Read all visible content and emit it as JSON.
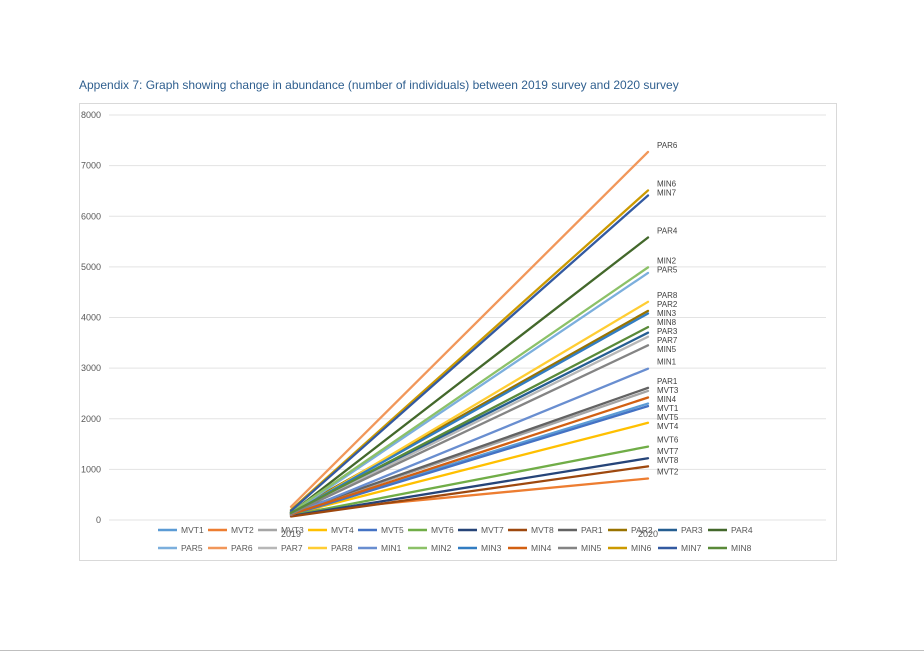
{
  "heading": "Appendix 7: Graph showing change in abundance (number of individuals) between 2019 survey and 2020 survey",
  "chart_data": {
    "type": "line",
    "x": [
      "2019",
      "2020"
    ],
    "ylim": [
      0,
      8000
    ],
    "yticks": [
      0,
      1000,
      2000,
      3000,
      4000,
      5000,
      6000,
      7000,
      8000
    ],
    "grid": true,
    "legend_position": "bottom",
    "series": [
      {
        "name": "MVT1",
        "color": "#5b9bd5",
        "values": [
          120,
          2300
        ]
      },
      {
        "name": "MVT2",
        "color": "#ed7d31",
        "values": [
          150,
          820
        ]
      },
      {
        "name": "MVT3",
        "color": "#a5a5a5",
        "values": [
          130,
          2550
        ]
      },
      {
        "name": "MVT4",
        "color": "#ffc000",
        "values": [
          110,
          1920
        ]
      },
      {
        "name": "MVT5",
        "color": "#4472c4",
        "values": [
          100,
          2250
        ]
      },
      {
        "name": "MVT6",
        "color": "#70ad47",
        "values": [
          90,
          1450
        ]
      },
      {
        "name": "MVT7",
        "color": "#264478",
        "values": [
          80,
          1220
        ]
      },
      {
        "name": "MVT8",
        "color": "#9e480e",
        "values": [
          70,
          1060
        ]
      },
      {
        "name": "PAR1",
        "color": "#636363",
        "values": [
          140,
          2610
        ]
      },
      {
        "name": "PAR2",
        "color": "#997300",
        "values": [
          160,
          4130
        ]
      },
      {
        "name": "PAR3",
        "color": "#255e91",
        "values": [
          150,
          3700
        ]
      },
      {
        "name": "PAR4",
        "color": "#43682b",
        "values": [
          140,
          5580
        ]
      },
      {
        "name": "PAR5",
        "color": "#7cafdd",
        "values": [
          130,
          4880
        ]
      },
      {
        "name": "PAR6",
        "color": "#f1975a",
        "values": [
          260,
          7270
        ]
      },
      {
        "name": "PAR7",
        "color": "#b7b7b7",
        "values": [
          120,
          3620
        ]
      },
      {
        "name": "PAR8",
        "color": "#ffcd33",
        "values": [
          110,
          4310
        ]
      },
      {
        "name": "MIN1",
        "color": "#698ed0",
        "values": [
          100,
          2990
        ]
      },
      {
        "name": "MIN2",
        "color": "#8cc168",
        "values": [
          150,
          4990
        ]
      },
      {
        "name": "MIN3",
        "color": "#327dc2",
        "values": [
          130,
          4080
        ]
      },
      {
        "name": "MIN4",
        "color": "#d26012",
        "values": [
          110,
          2420
        ]
      },
      {
        "name": "MIN5",
        "color": "#848484",
        "values": [
          120,
          3450
        ]
      },
      {
        "name": "MIN6",
        "color": "#cc9a00",
        "values": [
          200,
          6510
        ]
      },
      {
        "name": "MIN7",
        "color": "#335aa1",
        "values": [
          180,
          6410
        ]
      },
      {
        "name": "MIN8",
        "color": "#5a8a39",
        "values": [
          140,
          3810
        ]
      }
    ]
  }
}
